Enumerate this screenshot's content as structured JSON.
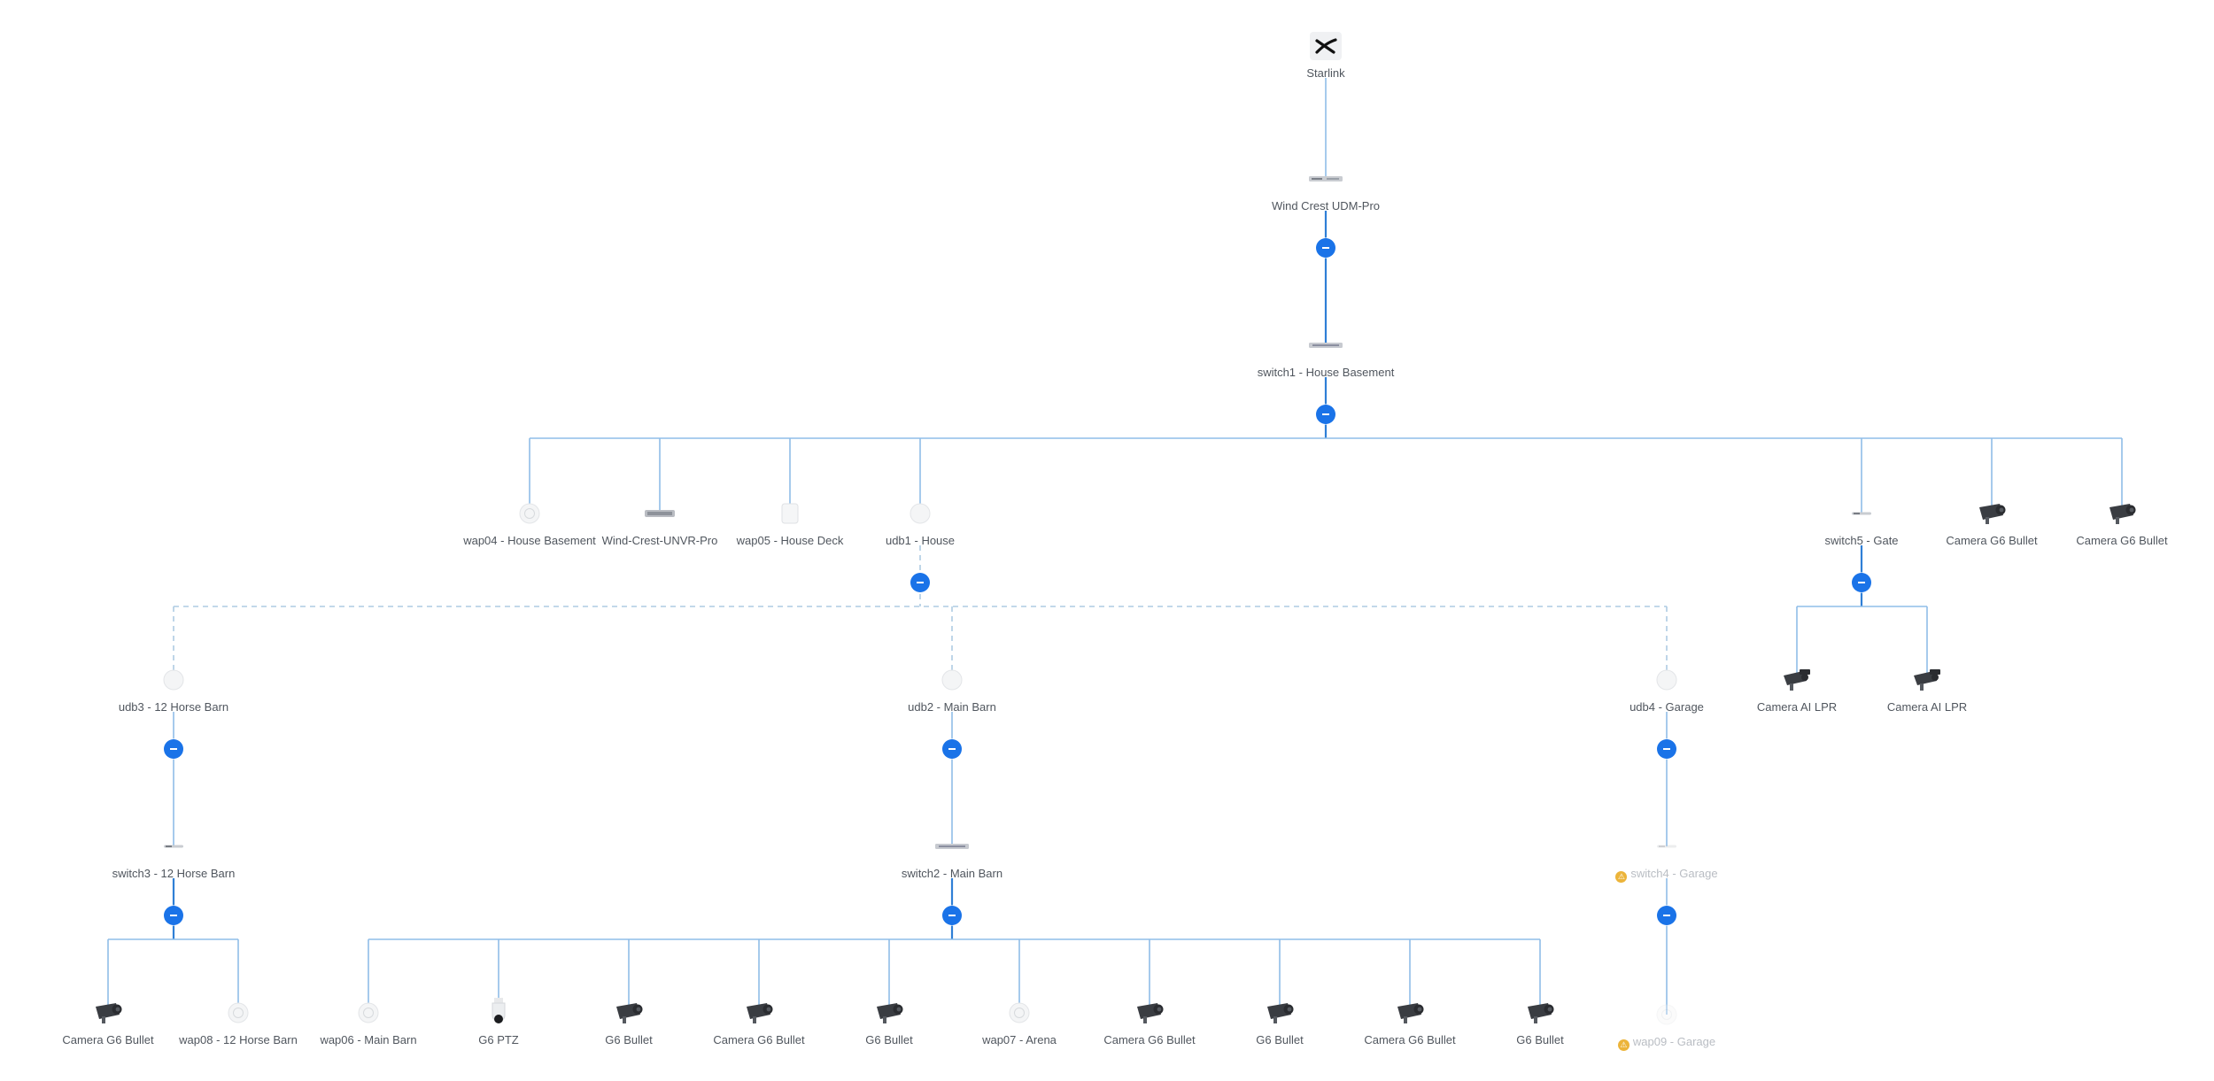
{
  "colors": {
    "link": "#8fbde8",
    "link_strong": "#2f7fd6",
    "link_dashed": "#aecbe3",
    "toggle": "#1a73e8",
    "offline_text": "#b9bdc3",
    "warning": "#ecb43a"
  },
  "nodes": [
    {
      "id": "starlink",
      "label": "Starlink",
      "icon": "starlink-logo-icon"
    },
    {
      "id": "udm",
      "label": "Wind Crest UDM-Pro",
      "icon": "udm-pro-icon"
    },
    {
      "id": "switch1",
      "label": "switch1 - House Basement",
      "icon": "rack-switch-icon"
    },
    {
      "id": "wap04",
      "label": "wap04 - House Basement",
      "icon": "access-point-icon"
    },
    {
      "id": "unvr",
      "label": "Wind-Crest-UNVR-Pro",
      "icon": "nvr-icon"
    },
    {
      "id": "wap05",
      "label": "wap05 - House Deck",
      "icon": "wall-access-point-icon"
    },
    {
      "id": "udb1",
      "label": "udb1 - House",
      "icon": "building-bridge-icon"
    },
    {
      "id": "switch5",
      "label": "switch5 - Gate",
      "icon": "flex-switch-icon"
    },
    {
      "id": "cam_house_1",
      "label": "Camera G6 Bullet",
      "icon": "bullet-camera-icon"
    },
    {
      "id": "cam_house_2",
      "label": "Camera G6 Bullet",
      "icon": "bullet-camera-icon"
    },
    {
      "id": "udb3",
      "label": "udb3 - 12 Horse Barn",
      "icon": "building-bridge-icon"
    },
    {
      "id": "udb2",
      "label": "udb2 - Main Barn",
      "icon": "building-bridge-icon"
    },
    {
      "id": "udb4",
      "label": "udb4 - Garage",
      "icon": "building-bridge-icon"
    },
    {
      "id": "lpr1",
      "label": "Camera AI LPR",
      "icon": "lpr-camera-icon"
    },
    {
      "id": "lpr2",
      "label": "Camera AI LPR",
      "icon": "lpr-camera-icon"
    },
    {
      "id": "switch3",
      "label": "switch3 - 12 Horse Barn",
      "icon": "flex-switch-icon"
    },
    {
      "id": "switch2",
      "label": "switch2 - Main Barn",
      "icon": "rack-switch-icon"
    },
    {
      "id": "switch4",
      "label": "switch4 - Garage",
      "icon": "flex-switch-icon",
      "offline": true
    },
    {
      "id": "cam_12h",
      "label": "Camera G6 Bullet",
      "icon": "bullet-camera-icon"
    },
    {
      "id": "wap08",
      "label": "wap08 - 12 Horse Barn",
      "icon": "access-point-icon"
    },
    {
      "id": "wap06",
      "label": "wap06 - Main Barn",
      "icon": "access-point-icon"
    },
    {
      "id": "ptz",
      "label": "G6 PTZ",
      "icon": "ptz-camera-icon"
    },
    {
      "id": "mb_bullet_1",
      "label": "G6 Bullet",
      "icon": "bullet-camera-icon"
    },
    {
      "id": "mb_cam_1",
      "label": "Camera G6 Bullet",
      "icon": "bullet-camera-icon"
    },
    {
      "id": "mb_bullet_2",
      "label": "G6 Bullet",
      "icon": "bullet-camera-icon"
    },
    {
      "id": "wap07",
      "label": "wap07 - Arena",
      "icon": "access-point-icon"
    },
    {
      "id": "mb_cam_2",
      "label": "Camera G6 Bullet",
      "icon": "bullet-camera-icon"
    },
    {
      "id": "mb_bullet_3",
      "label": "G6 Bullet",
      "icon": "bullet-camera-icon"
    },
    {
      "id": "mb_cam_3",
      "label": "Camera G6 Bullet",
      "icon": "bullet-camera-icon"
    },
    {
      "id": "mb_bullet_4",
      "label": "G6 Bullet",
      "icon": "bullet-camera-icon"
    },
    {
      "id": "wap09",
      "label": "wap09 - Garage",
      "icon": "access-point-icon",
      "offline": true
    }
  ],
  "links": [
    {
      "from": "starlink",
      "to": "udm",
      "style": "solid"
    },
    {
      "from": "udm",
      "to": "switch1",
      "style": "strong"
    },
    {
      "from": "switch1",
      "to": "wap04",
      "style": "solid"
    },
    {
      "from": "switch1",
      "to": "unvr",
      "style": "solid"
    },
    {
      "from": "switch1",
      "to": "wap05",
      "style": "solid"
    },
    {
      "from": "switch1",
      "to": "udb1",
      "style": "solid"
    },
    {
      "from": "switch1",
      "to": "switch5",
      "style": "solid"
    },
    {
      "from": "switch1",
      "to": "cam_house_1",
      "style": "solid"
    },
    {
      "from": "switch1",
      "to": "cam_house_2",
      "style": "solid"
    },
    {
      "from": "udb1",
      "to": "udb3",
      "style": "dashed"
    },
    {
      "from": "udb1",
      "to": "udb2",
      "style": "dashed"
    },
    {
      "from": "udb1",
      "to": "udb4",
      "style": "dashed"
    },
    {
      "from": "switch5",
      "to": "lpr1",
      "style": "solid"
    },
    {
      "from": "switch5",
      "to": "lpr2",
      "style": "solid"
    },
    {
      "from": "udb3",
      "to": "switch3",
      "style": "solid"
    },
    {
      "from": "udb2",
      "to": "switch2",
      "style": "solid"
    },
    {
      "from": "udb4",
      "to": "switch4",
      "style": "solid"
    },
    {
      "from": "switch3",
      "to": "cam_12h",
      "style": "solid"
    },
    {
      "from": "switch3",
      "to": "wap08",
      "style": "solid"
    },
    {
      "from": "switch2",
      "to": "wap06",
      "style": "solid"
    },
    {
      "from": "switch2",
      "to": "ptz",
      "style": "solid"
    },
    {
      "from": "switch2",
      "to": "mb_bullet_1",
      "style": "solid"
    },
    {
      "from": "switch2",
      "to": "mb_cam_1",
      "style": "solid"
    },
    {
      "from": "switch2",
      "to": "mb_bullet_2",
      "style": "solid"
    },
    {
      "from": "switch2",
      "to": "wap07",
      "style": "solid"
    },
    {
      "from": "switch2",
      "to": "mb_cam_2",
      "style": "solid"
    },
    {
      "from": "switch2",
      "to": "mb_bullet_3",
      "style": "solid"
    },
    {
      "from": "switch2",
      "to": "mb_cam_3",
      "style": "solid"
    },
    {
      "from": "switch2",
      "to": "mb_bullet_4",
      "style": "solid"
    },
    {
      "from": "switch4",
      "to": "wap09",
      "style": "solid"
    }
  ]
}
